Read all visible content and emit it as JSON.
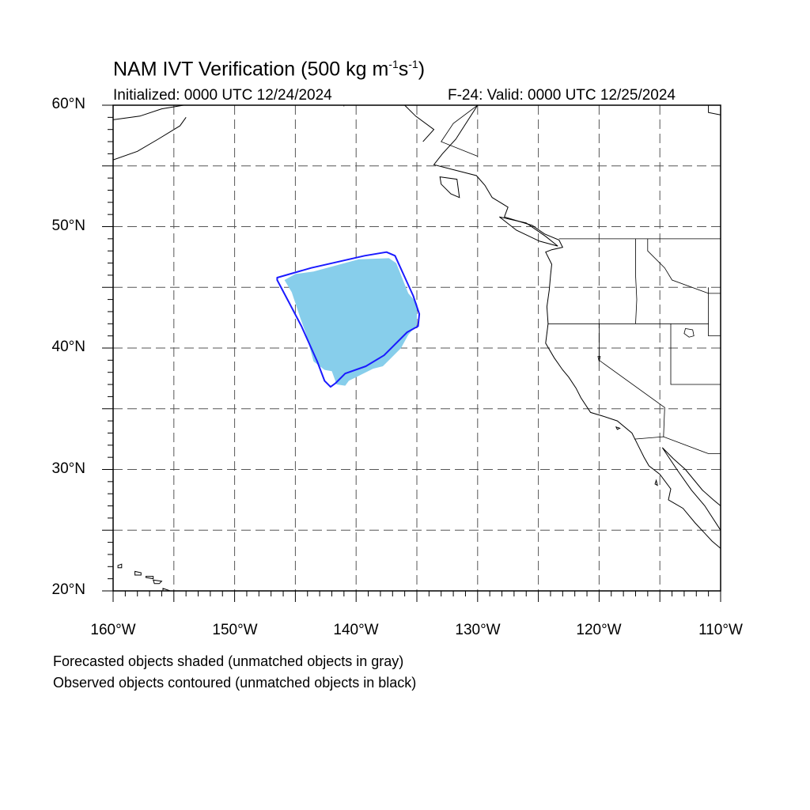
{
  "title": {
    "main": "NAM IVT Verification (500 kg m",
    "sup1": "-1",
    "mid": "s",
    "sup2": "-1",
    "end": ")"
  },
  "initialized": "Initialized: 0000 UTC 12/24/2024",
  "valid": "F-24: Valid: 0000 UTC 12/25/2024",
  "lat_labels": [
    "60°N",
    "50°N",
    "40°N",
    "30°N",
    "20°N"
  ],
  "lon_labels": [
    "160°W",
    "150°W",
    "140°W",
    "130°W",
    "120°W",
    "110°W"
  ],
  "notes": [
    "Forecasted objects shaded (unmatched objects in gray)",
    "Observed objects contoured (unmatched objects in black)"
  ],
  "map": {
    "lon_range": [
      -160,
      -110
    ],
    "lat_range": [
      20,
      60
    ],
    "grid_spacing_deg": 5,
    "grid_style": "dashed",
    "colors": {
      "forecast_fill": "#87ceeb",
      "observed_contour": "#1a1aff",
      "coast": "#000000",
      "grid": "#555555"
    },
    "forecast_object": {
      "label": "Forecasted object (matched)",
      "polygon_lonlat": [
        [
          -145.0,
          46.1
        ],
        [
          -143.5,
          46.3
        ],
        [
          -139.8,
          47.3
        ],
        [
          -137.3,
          47.4
        ],
        [
          -136.7,
          47.0
        ],
        [
          -135.7,
          44.5
        ],
        [
          -135.0,
          43.7
        ],
        [
          -135.0,
          41.9
        ],
        [
          -135.7,
          41.1
        ],
        [
          -136.3,
          40.0
        ],
        [
          -137.0,
          39.3
        ],
        [
          -137.8,
          38.5
        ],
        [
          -138.6,
          38.3
        ],
        [
          -139.8,
          37.7
        ],
        [
          -140.6,
          37.3
        ],
        [
          -140.9,
          36.9
        ],
        [
          -141.6,
          37.0
        ],
        [
          -142.0,
          38.1
        ],
        [
          -142.6,
          38.2
        ],
        [
          -143.5,
          38.9
        ],
        [
          -144.1,
          41.1
        ],
        [
          -144.6,
          42.5
        ],
        [
          -145.3,
          44.6
        ],
        [
          -145.9,
          45.6
        ]
      ]
    },
    "observed_object": {
      "label": "Observed object (matched)",
      "polygon_lonlat": [
        [
          -146.5,
          45.8
        ],
        [
          -143.7,
          46.6
        ],
        [
          -139.3,
          47.6
        ],
        [
          -137.5,
          47.9
        ],
        [
          -136.8,
          47.6
        ],
        [
          -135.3,
          44.3
        ],
        [
          -134.8,
          42.8
        ],
        [
          -134.9,
          41.8
        ],
        [
          -135.8,
          41.3
        ],
        [
          -137.7,
          39.4
        ],
        [
          -139.2,
          38.5
        ],
        [
          -140.9,
          37.9
        ],
        [
          -141.7,
          37.1
        ],
        [
          -142.1,
          36.8
        ],
        [
          -142.6,
          37.3
        ],
        [
          -143.2,
          38.9
        ],
        [
          -144.5,
          41.8
        ],
        [
          -145.6,
          43.9
        ],
        [
          -146.5,
          45.6
        ]
      ]
    },
    "coastlines": [
      [
        [
          -130.0,
          60.0
        ],
        [
          -131.8,
          57.2
        ],
        [
          -132.9,
          56.0
        ],
        [
          -133.6,
          55.1
        ],
        [
          -130.1,
          54.2
        ],
        [
          -129.4,
          53.4
        ],
        [
          -128.8,
          52.4
        ],
        [
          -127.5,
          51.6
        ],
        [
          -127.8,
          50.8
        ],
        [
          -125.5,
          50.1
        ],
        [
          -124.5,
          49.4
        ],
        [
          -123.3,
          48.9
        ],
        [
          -123.0,
          48.3
        ],
        [
          -123.9,
          48.1
        ],
        [
          -124.4,
          47.9
        ],
        [
          -123.9,
          46.9
        ],
        [
          -124.0,
          46.0
        ],
        [
          -124.1,
          44.8
        ],
        [
          -124.3,
          43.4
        ],
        [
          -124.2,
          42.0
        ],
        [
          -124.4,
          40.4
        ],
        [
          -123.7,
          39.2
        ],
        [
          -123.0,
          38.2
        ],
        [
          -122.5,
          37.6
        ],
        [
          -121.9,
          36.7
        ],
        [
          -121.5,
          35.9
        ],
        [
          -120.7,
          34.7
        ],
        [
          -119.7,
          34.4
        ],
        [
          -118.5,
          34.0
        ],
        [
          -117.3,
          33.0
        ],
        [
          -116.9,
          32.2
        ],
        [
          -116.3,
          31.0
        ],
        [
          -115.9,
          30.3
        ],
        [
          -115.0,
          29.6
        ],
        [
          -114.1,
          28.4
        ],
        [
          -114.3,
          27.5
        ],
        [
          -113.1,
          26.8
        ],
        [
          -112.1,
          25.6
        ],
        [
          -110.7,
          24.1
        ],
        [
          -110.0,
          23.5
        ]
      ],
      [
        [
          -110.0,
          25.0
        ],
        [
          -111.3,
          27.0
        ],
        [
          -112.4,
          28.3
        ],
        [
          -113.6,
          30.0
        ],
        [
          -114.8,
          31.8
        ],
        [
          -113.9,
          30.9
        ],
        [
          -112.9,
          30.0
        ],
        [
          -111.5,
          28.3
        ],
        [
          -110.6,
          27.5
        ],
        [
          -110.0,
          27.0
        ]
      ],
      [
        [
          -160.0,
          58.8
        ],
        [
          -157.8,
          59.1
        ],
        [
          -156.0,
          59.7
        ],
        [
          -154.2,
          60.0
        ]
      ],
      [
        [
          -160.0,
          55.5
        ],
        [
          -158.0,
          56.2
        ],
        [
          -156.3,
          57.2
        ],
        [
          -154.5,
          58.3
        ],
        [
          -154.0,
          59.0
        ]
      ],
      [
        [
          -136.0,
          60.0
        ],
        [
          -135.1,
          59.1
        ],
        [
          -133.6,
          58.0
        ],
        [
          -134.5,
          57.0
        ]
      ],
      [
        [
          -110.0,
          59.2
        ],
        [
          -111.0,
          59.4
        ],
        [
          -111.0,
          60.0
        ]
      ]
    ],
    "islands": [
      [
        [
          -159.6,
          22.1
        ],
        [
          -159.3,
          22.2
        ],
        [
          -159.3,
          21.9
        ],
        [
          -159.6,
          21.9
        ]
      ],
      [
        [
          -158.2,
          21.6
        ],
        [
          -157.7,
          21.5
        ],
        [
          -157.7,
          21.3
        ],
        [
          -158.2,
          21.3
        ]
      ],
      [
        [
          -157.3,
          21.2
        ],
        [
          -156.7,
          21.2
        ],
        [
          -156.7,
          21.0
        ],
        [
          -157.3,
          21.1
        ]
      ],
      [
        [
          -156.7,
          20.9
        ],
        [
          -156.0,
          20.8
        ],
        [
          -156.2,
          20.6
        ],
        [
          -156.6,
          20.6
        ]
      ],
      [
        [
          -155.9,
          20.2
        ],
        [
          -155.0,
          19.9
        ],
        [
          -155.0,
          19.4
        ],
        [
          -155.9,
          19.4
        ]
      ],
      [
        [
          -133.1,
          54.1
        ],
        [
          -131.7,
          53.9
        ],
        [
          -131.5,
          52.4
        ],
        [
          -132.2,
          52.7
        ],
        [
          -133.0,
          53.5
        ]
      ],
      [
        [
          -128.2,
          50.8
        ],
        [
          -126.0,
          50.3
        ],
        [
          -124.4,
          49.2
        ],
        [
          -123.4,
          48.4
        ],
        [
          -124.9,
          48.8
        ],
        [
          -126.8,
          49.7
        ]
      ],
      [
        [
          -118.6,
          33.5
        ],
        [
          -118.3,
          33.4
        ],
        [
          -118.5,
          33.3
        ]
      ],
      [
        [
          -115.3,
          29.1
        ],
        [
          -115.2,
          28.7
        ],
        [
          -115.4,
          28.8
        ]
      ]
    ],
    "borders": [
      [
        [
          -123.3,
          49.0
        ],
        [
          -110.0,
          49.0
        ]
      ],
      [
        [
          -124.2,
          42.0
        ],
        [
          -111.0,
          42.0
        ]
      ],
      [
        [
          -117.0,
          49.0
        ],
        [
          -117.0,
          46.0
        ],
        [
          -116.9,
          44.0
        ],
        [
          -117.0,
          42.0
        ]
      ],
      [
        [
          -120.0,
          42.0
        ],
        [
          -120.0,
          39.0
        ],
        [
          -114.6,
          35.1
        ],
        [
          -114.7,
          32.7
        ]
      ],
      [
        [
          -117.1,
          32.5
        ],
        [
          -114.7,
          32.7
        ],
        [
          -111.0,
          31.3
        ],
        [
          -110.0,
          31.3
        ]
      ],
      [
        [
          -114.1,
          42.0
        ],
        [
          -114.1,
          37.0
        ],
        [
          -110.0,
          37.0
        ]
      ],
      [
        [
          -116.0,
          49.0
        ],
        [
          -116.0,
          48.0
        ],
        [
          -114.6,
          46.6
        ],
        [
          -114.0,
          45.6
        ],
        [
          -111.0,
          44.5
        ],
        [
          -110.0,
          44.5
        ]
      ],
      [
        [
          -111.0,
          45.0
        ],
        [
          -111.0,
          41.0
        ],
        [
          -110.0,
          41.0
        ]
      ],
      [
        [
          -141.0,
          60.0
        ],
        [
          -141.0,
          59.9
        ]
      ],
      [
        [
          -130.0,
          60.0
        ],
        [
          -132.0,
          58.5
        ],
        [
          -133.0,
          57.0
        ],
        [
          -130.0,
          55.8
        ]
      ]
    ],
    "lakes": [
      [
        [
          -112.9,
          41.6
        ],
        [
          -112.3,
          41.5
        ],
        [
          -112.2,
          41.0
        ],
        [
          -112.6,
          40.9
        ],
        [
          -113.0,
          41.2
        ]
      ],
      [
        [
          -120.1,
          39.3
        ],
        [
          -119.9,
          39.3
        ],
        [
          -120.0,
          38.9
        ]
      ]
    ]
  }
}
